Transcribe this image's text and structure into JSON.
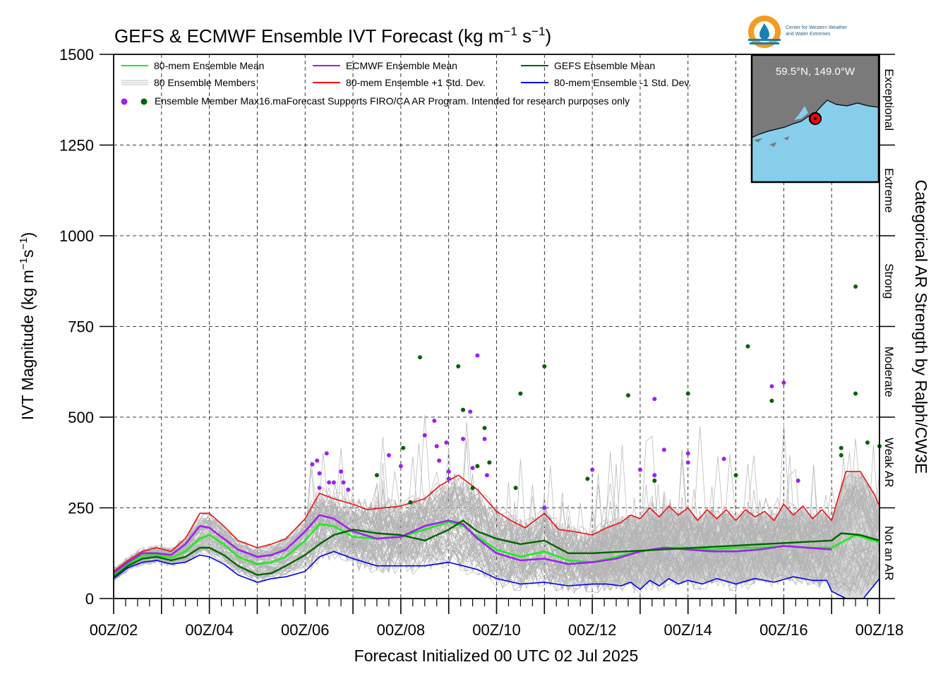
{
  "title_main": "GEFS & ECMWF Ensemble IVT Forecast (kg m",
  "title_sup1": "−1",
  "title_mid": " s",
  "title_sup2": "−1",
  "title_end": ")",
  "logo": {
    "line1": "Center for Western Weather",
    "line2": "and Water Extremes",
    "colors": {
      "ring": "#f39c1f",
      "drop": "#1a7fb5",
      "waves": "#1a7fb5"
    }
  },
  "inset": {
    "coord_label": "59.5°N, 149.0°W",
    "land_color": "#7a7a7a",
    "ocean_color": "#87ceeb",
    "marker_color": "#ff0000"
  },
  "legend": {
    "mean_label": "80-mem Ensemble Mean",
    "members_label": "80 Ensemble Members",
    "max_label": "Ensemble Member Max16.maForecast Supports FIRO/CA AR Program. Intended for research purposes only",
    "ecmwf_label": "ECMWF Ensemble Mean",
    "plus_std_label": "80-mem Ensemble +1 Std. Dev.",
    "gefs_label": "GEFS Ensemble Mean",
    "minus_std_label": "80-mem Ensemble -1 Std. Dev."
  },
  "chart_data": {
    "type": "line",
    "xlabel": "Forecast Initialized 00 UTC 02 Jul 2025",
    "ylabel_main": "IVT Magnitude (kg m",
    "ylabel_sup1": "−1",
    "ylabel_mid": "s",
    "ylabel_sup2": "−1",
    "ylabel_end": ")",
    "right_label": "Categorical AR Strength by Ralph/CW3E",
    "ylim": [
      0,
      1500
    ],
    "xlim": [
      2,
      18
    ],
    "y_ticks": [
      0,
      250,
      500,
      750,
      1000,
      1250,
      1500
    ],
    "x_ticks": [
      2,
      4,
      6,
      8,
      10,
      12,
      14,
      16,
      18
    ],
    "x_tick_labels": [
      "00Z/02",
      "00Z/04",
      "00Z/06",
      "00Z/08",
      "00Z/10",
      "00Z/12",
      "00Z/14",
      "00Z/16",
      "00Z/18"
    ],
    "grid": true,
    "legend_position": "top-left",
    "categories": [
      {
        "label": "Not an AR",
        "range": [
          0,
          250
        ]
      },
      {
        "label": "Weak AR",
        "range": [
          250,
          500
        ]
      },
      {
        "label": "Moderate",
        "range": [
          500,
          750
        ]
      },
      {
        "label": "Strong",
        "range": [
          750,
          1000
        ]
      },
      {
        "label": "Extreme",
        "range": [
          1000,
          1250
        ]
      },
      {
        "label": "Exceptional",
        "range": [
          1250,
          1500
        ]
      }
    ],
    "series": [
      {
        "name": "80-mem Ensemble Mean",
        "color": "#1aee1a",
        "width": 2.6,
        "points": [
          [
            2.0,
            65
          ],
          [
            2.3,
            95
          ],
          [
            2.6,
            118
          ],
          [
            2.9,
            120
          ],
          [
            3.2,
            112
          ],
          [
            3.5,
            130
          ],
          [
            3.8,
            165
          ],
          [
            4.0,
            175
          ],
          [
            4.3,
            150
          ],
          [
            4.6,
            115
          ],
          [
            5.0,
            95
          ],
          [
            5.3,
            100
          ],
          [
            5.6,
            115
          ],
          [
            6.0,
            160
          ],
          [
            6.3,
            205
          ],
          [
            6.6,
            200
          ],
          [
            7.0,
            170
          ],
          [
            7.5,
            165
          ],
          [
            8.0,
            170
          ],
          [
            8.5,
            190
          ],
          [
            9.0,
            210
          ],
          [
            9.3,
            200
          ],
          [
            9.6,
            170
          ],
          [
            10.0,
            135
          ],
          [
            10.5,
            115
          ],
          [
            11.0,
            130
          ],
          [
            11.5,
            105
          ],
          [
            12.0,
            100
          ],
          [
            12.5,
            115
          ],
          [
            13.0,
            130
          ],
          [
            13.5,
            140
          ],
          [
            14.0,
            140
          ],
          [
            14.5,
            135
          ],
          [
            15.0,
            140
          ],
          [
            15.5,
            140
          ],
          [
            16.0,
            145
          ],
          [
            16.5,
            140
          ],
          [
            17.0,
            140
          ],
          [
            17.5,
            175
          ],
          [
            18.0,
            155
          ]
        ]
      },
      {
        "name": "ECMWF Ensemble Mean",
        "color": "#a020f0",
        "width": 2.6,
        "points": [
          [
            2.0,
            70
          ],
          [
            2.3,
            100
          ],
          [
            2.6,
            125
          ],
          [
            2.9,
            125
          ],
          [
            3.2,
            120
          ],
          [
            3.5,
            150
          ],
          [
            3.8,
            200
          ],
          [
            4.0,
            195
          ],
          [
            4.3,
            165
          ],
          [
            4.6,
            135
          ],
          [
            5.0,
            115
          ],
          [
            5.3,
            120
          ],
          [
            5.6,
            135
          ],
          [
            6.0,
            185
          ],
          [
            6.3,
            230
          ],
          [
            6.6,
            220
          ],
          [
            7.0,
            185
          ],
          [
            7.5,
            165
          ],
          [
            8.0,
            170
          ],
          [
            8.5,
            200
          ],
          [
            9.0,
            215
          ],
          [
            9.3,
            205
          ],
          [
            9.6,
            165
          ],
          [
            10.0,
            125
          ],
          [
            10.5,
            105
          ],
          [
            11.0,
            110
          ],
          [
            11.5,
            95
          ],
          [
            12.0,
            100
          ],
          [
            12.5,
            110
          ],
          [
            13.0,
            130
          ],
          [
            13.5,
            140
          ],
          [
            14.0,
            135
          ],
          [
            14.5,
            130
          ],
          [
            15.0,
            130
          ],
          [
            15.5,
            135
          ],
          [
            16.0,
            145
          ],
          [
            16.5,
            140
          ],
          [
            17.0,
            135
          ]
        ]
      },
      {
        "name": "GEFS Ensemble Mean",
        "color": "#006400",
        "width": 2.4,
        "points": [
          [
            2.0,
            60
          ],
          [
            2.3,
            90
          ],
          [
            2.6,
            110
          ],
          [
            2.9,
            115
          ],
          [
            3.2,
            105
          ],
          [
            3.5,
            115
          ],
          [
            3.8,
            140
          ],
          [
            4.0,
            140
          ],
          [
            4.3,
            120
          ],
          [
            4.6,
            90
          ],
          [
            5.0,
            65
          ],
          [
            5.3,
            70
          ],
          [
            5.6,
            90
          ],
          [
            6.0,
            120
          ],
          [
            6.3,
            150
          ],
          [
            6.6,
            175
          ],
          [
            7.0,
            190
          ],
          [
            7.5,
            180
          ],
          [
            8.0,
            175
          ],
          [
            8.5,
            160
          ],
          [
            9.0,
            190
          ],
          [
            9.3,
            215
          ],
          [
            9.6,
            185
          ],
          [
            10.0,
            165
          ],
          [
            10.5,
            150
          ],
          [
            11.0,
            160
          ],
          [
            11.5,
            125
          ],
          [
            12.0,
            125
          ],
          [
            12.0,
            125
          ],
          [
            17.0,
            160
          ],
          [
            17.2,
            180
          ],
          [
            17.6,
            175
          ],
          [
            18.0,
            160
          ]
        ]
      },
      {
        "name": "80-mem Ensemble +1 Std. Dev.",
        "color": "#ee1111",
        "width": 1.6,
        "points": [
          [
            2.0,
            75
          ],
          [
            2.3,
            105
          ],
          [
            2.6,
            130
          ],
          [
            2.9,
            140
          ],
          [
            3.2,
            130
          ],
          [
            3.5,
            165
          ],
          [
            3.8,
            235
          ],
          [
            4.0,
            235
          ],
          [
            4.3,
            200
          ],
          [
            4.6,
            160
          ],
          [
            5.0,
            140
          ],
          [
            5.3,
            150
          ],
          [
            5.6,
            165
          ],
          [
            6.0,
            220
          ],
          [
            6.3,
            290
          ],
          [
            6.6,
            275
          ],
          [
            7.0,
            260
          ],
          [
            7.3,
            245
          ],
          [
            8.0,
            255
          ],
          [
            8.5,
            275
          ],
          [
            8.8,
            310
          ],
          [
            9.2,
            340
          ],
          [
            9.6,
            300
          ],
          [
            10.0,
            240
          ],
          [
            10.3,
            215
          ],
          [
            10.6,
            195
          ],
          [
            11.0,
            235
          ],
          [
            11.3,
            190
          ],
          [
            11.6,
            185
          ],
          [
            12.0,
            175
          ],
          [
            12.3,
            195
          ],
          [
            12.6,
            210
          ],
          [
            12.8,
            230
          ],
          [
            13.0,
            220
          ],
          [
            13.2,
            250
          ],
          [
            13.4,
            225
          ],
          [
            13.6,
            255
          ],
          [
            13.8,
            230
          ],
          [
            14.0,
            250
          ],
          [
            14.2,
            215
          ],
          [
            14.4,
            245
          ],
          [
            14.6,
            220
          ],
          [
            14.8,
            245
          ],
          [
            15.0,
            215
          ],
          [
            15.2,
            245
          ],
          [
            15.4,
            225
          ],
          [
            15.6,
            240
          ],
          [
            15.8,
            215
          ],
          [
            16.0,
            260
          ],
          [
            16.2,
            230
          ],
          [
            16.4,
            255
          ],
          [
            16.6,
            220
          ],
          [
            16.8,
            245
          ],
          [
            17.0,
            215
          ],
          [
            17.3,
            350
          ],
          [
            17.6,
            350
          ],
          [
            17.9,
            285
          ],
          [
            18.0,
            255
          ]
        ]
      },
      {
        "name": "80-mem Ensemble -1 Std. Dev.",
        "color": "#0000ee",
        "width": 1.6,
        "points": [
          [
            2.0,
            55
          ],
          [
            2.3,
            85
          ],
          [
            2.6,
            100
          ],
          [
            2.9,
            105
          ],
          [
            3.2,
            95
          ],
          [
            3.5,
            100
          ],
          [
            3.8,
            120
          ],
          [
            4.0,
            115
          ],
          [
            4.3,
            95
          ],
          [
            4.6,
            65
          ],
          [
            5.0,
            45
          ],
          [
            5.3,
            55
          ],
          [
            5.6,
            60
          ],
          [
            6.0,
            75
          ],
          [
            6.3,
            115
          ],
          [
            6.6,
            130
          ],
          [
            7.0,
            110
          ],
          [
            7.5,
            90
          ],
          [
            8.0,
            90
          ],
          [
            8.5,
            90
          ],
          [
            9.0,
            100
          ],
          [
            9.3,
            90
          ],
          [
            9.6,
            80
          ],
          [
            10.0,
            55
          ],
          [
            10.5,
            40
          ],
          [
            11.0,
            45
          ],
          [
            11.5,
            35
          ],
          [
            12.0,
            40
          ],
          [
            12.3,
            40
          ],
          [
            12.6,
            35
          ],
          [
            12.8,
            45
          ],
          [
            13.0,
            25
          ],
          [
            13.2,
            50
          ],
          [
            13.4,
            35
          ],
          [
            13.6,
            55
          ],
          [
            13.8,
            40
          ],
          [
            14.0,
            50
          ],
          [
            14.3,
            40
          ],
          [
            14.6,
            55
          ],
          [
            15.0,
            40
          ],
          [
            15.4,
            55
          ],
          [
            15.8,
            45
          ],
          [
            16.2,
            60
          ],
          [
            16.6,
            50
          ],
          [
            16.9,
            50
          ],
          [
            17.0,
            20
          ],
          [
            17.3,
            0
          ],
          [
            17.6,
            -10
          ],
          [
            18.0,
            55
          ]
        ]
      }
    ],
    "ecmwf_max_points": [
      [
        6.15,
        370
      ],
      [
        6.25,
        380
      ],
      [
        6.3,
        345
      ],
      [
        6.3,
        305
      ],
      [
        6.45,
        400
      ],
      [
        6.5,
        320
      ],
      [
        6.6,
        320
      ],
      [
        6.75,
        350
      ],
      [
        6.8,
        320
      ],
      [
        6.9,
        300
      ],
      [
        7.75,
        395
      ],
      [
        8.0,
        365
      ],
      [
        8.5,
        450
      ],
      [
        8.7,
        490
      ],
      [
        8.75,
        420
      ],
      [
        8.8,
        380
      ],
      [
        8.95,
        430
      ],
      [
        9.0,
        350
      ],
      [
        9.0,
        330
      ],
      [
        9.3,
        520
      ],
      [
        9.3,
        440
      ],
      [
        9.45,
        515
      ],
      [
        9.5,
        360
      ],
      [
        9.6,
        670
      ],
      [
        9.8,
        340
      ],
      [
        9.75,
        440
      ],
      [
        11.0,
        250
      ],
      [
        12.0,
        355
      ],
      [
        13.0,
        355
      ],
      [
        13.3,
        550
      ],
      [
        13.3,
        340
      ],
      [
        13.5,
        410
      ],
      [
        14.0,
        400
      ],
      [
        14.0,
        375
      ],
      [
        14.75,
        385
      ],
      [
        15.75,
        585
      ],
      [
        16.0,
        595
      ],
      [
        16.3,
        325
      ]
    ],
    "gefs_max_points": [
      [
        7.5,
        340
      ],
      [
        8.05,
        415
      ],
      [
        8.2,
        265
      ],
      [
        8.4,
        665
      ],
      [
        9.2,
        640
      ],
      [
        9.3,
        520
      ],
      [
        9.5,
        305
      ],
      [
        9.6,
        365
      ],
      [
        9.75,
        470
      ],
      [
        9.85,
        375
      ],
      [
        10.4,
        305
      ],
      [
        10.5,
        565
      ],
      [
        11.0,
        640
      ],
      [
        11.9,
        330
      ],
      [
        12.75,
        560
      ],
      [
        13.3,
        325
      ],
      [
        14.0,
        565
      ],
      [
        15.0,
        340
      ],
      [
        15.25,
        695
      ],
      [
        15.75,
        545
      ],
      [
        17.2,
        415
      ],
      [
        17.2,
        395
      ],
      [
        17.5,
        860
      ],
      [
        17.5,
        565
      ],
      [
        17.75,
        430
      ],
      [
        18.0,
        420
      ]
    ]
  }
}
